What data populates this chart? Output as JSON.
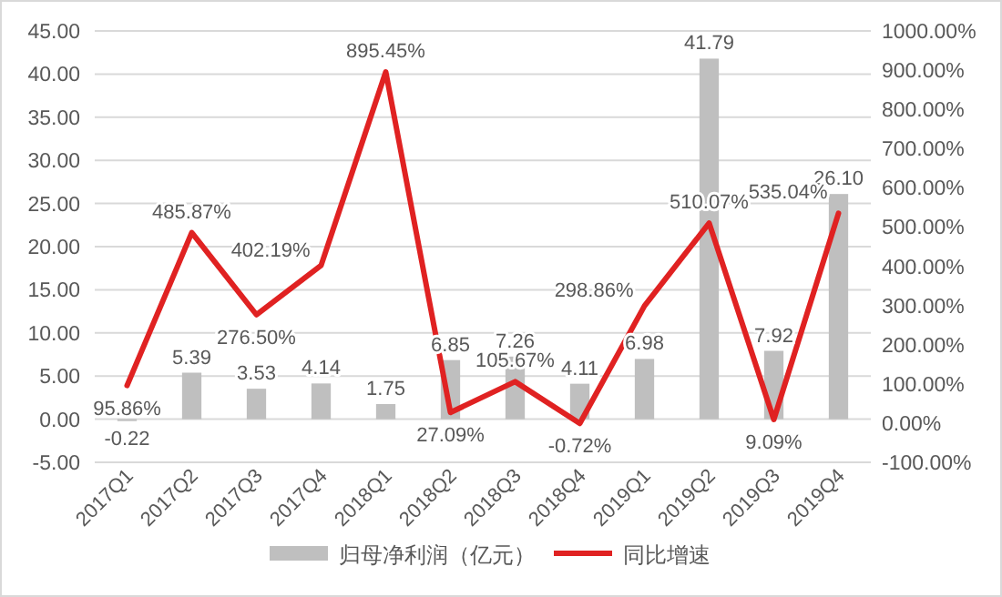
{
  "chart_data": {
    "type": "bar",
    "categories": [
      "2017Q1",
      "2017Q2",
      "2017Q3",
      "2017Q4",
      "2018Q1",
      "2018Q2",
      "2018Q3",
      "2018Q4",
      "2019Q1",
      "2019Q2",
      "2019Q3",
      "2019Q4"
    ],
    "series": [
      {
        "name": "归母净利润（亿元）",
        "color": "#bfbfbf",
        "values": [
          -0.22,
          5.39,
          3.53,
          4.14,
          1.75,
          6.85,
          7.26,
          4.11,
          6.98,
          41.79,
          7.92,
          26.1
        ],
        "value_labels": [
          "-0.22",
          "5.39",
          "3.53",
          "4.14",
          "1.75",
          "6.85",
          "7.26",
          "4.11",
          "6.98",
          "41.79",
          "7.92",
          "26.10"
        ]
      },
      {
        "name": "同比增速",
        "type": "line",
        "axis": "y2",
        "color": "#e02222",
        "values": [
          95.86,
          485.87,
          276.5,
          402.19,
          895.45,
          27.09,
          105.67,
          -0.72,
          298.86,
          510.07,
          9.09,
          535.04
        ],
        "value_labels": [
          "95.86%",
          "485.87%",
          "276.50%",
          "402.19%",
          "895.45%",
          "27.09%",
          "105.67%",
          "-0.72%",
          "298.86%",
          "510.07%",
          "9.09%",
          "535.04%"
        ]
      }
    ],
    "ylim": [
      -5,
      45
    ],
    "yticks": [
      {
        "value": -5,
        "label": "-5.00"
      },
      {
        "value": 0,
        "label": "0.00"
      },
      {
        "value": 5,
        "label": "5.00"
      },
      {
        "value": 10,
        "label": "10.00"
      },
      {
        "value": 15,
        "label": "15.00"
      },
      {
        "value": 20,
        "label": "20.00"
      },
      {
        "value": 25,
        "label": "25.00"
      },
      {
        "value": 30,
        "label": "30.00"
      },
      {
        "value": 35,
        "label": "35.00"
      },
      {
        "value": 40,
        "label": "40.00"
      },
      {
        "value": 45,
        "label": "45.00"
      }
    ],
    "y2lim": [
      -100,
      1000
    ],
    "y2ticks": [
      {
        "value": -100,
        "label": "-100.00%"
      },
      {
        "value": 0,
        "label": "0.00%"
      },
      {
        "value": 100,
        "label": "100.00%"
      },
      {
        "value": 200,
        "label": "200.00%"
      },
      {
        "value": 300,
        "label": "300.00%"
      },
      {
        "value": 400,
        "label": "400.00%"
      },
      {
        "value": 500,
        "label": "500.00%"
      },
      {
        "value": 600,
        "label": "600.00%"
      },
      {
        "value": 700,
        "label": "700.00%"
      },
      {
        "value": 800,
        "label": "800.00%"
      },
      {
        "value": 900,
        "label": "900.00%"
      },
      {
        "value": 1000,
        "label": "1000.00%"
      }
    ],
    "grid": "y",
    "legend": "bottom"
  }
}
